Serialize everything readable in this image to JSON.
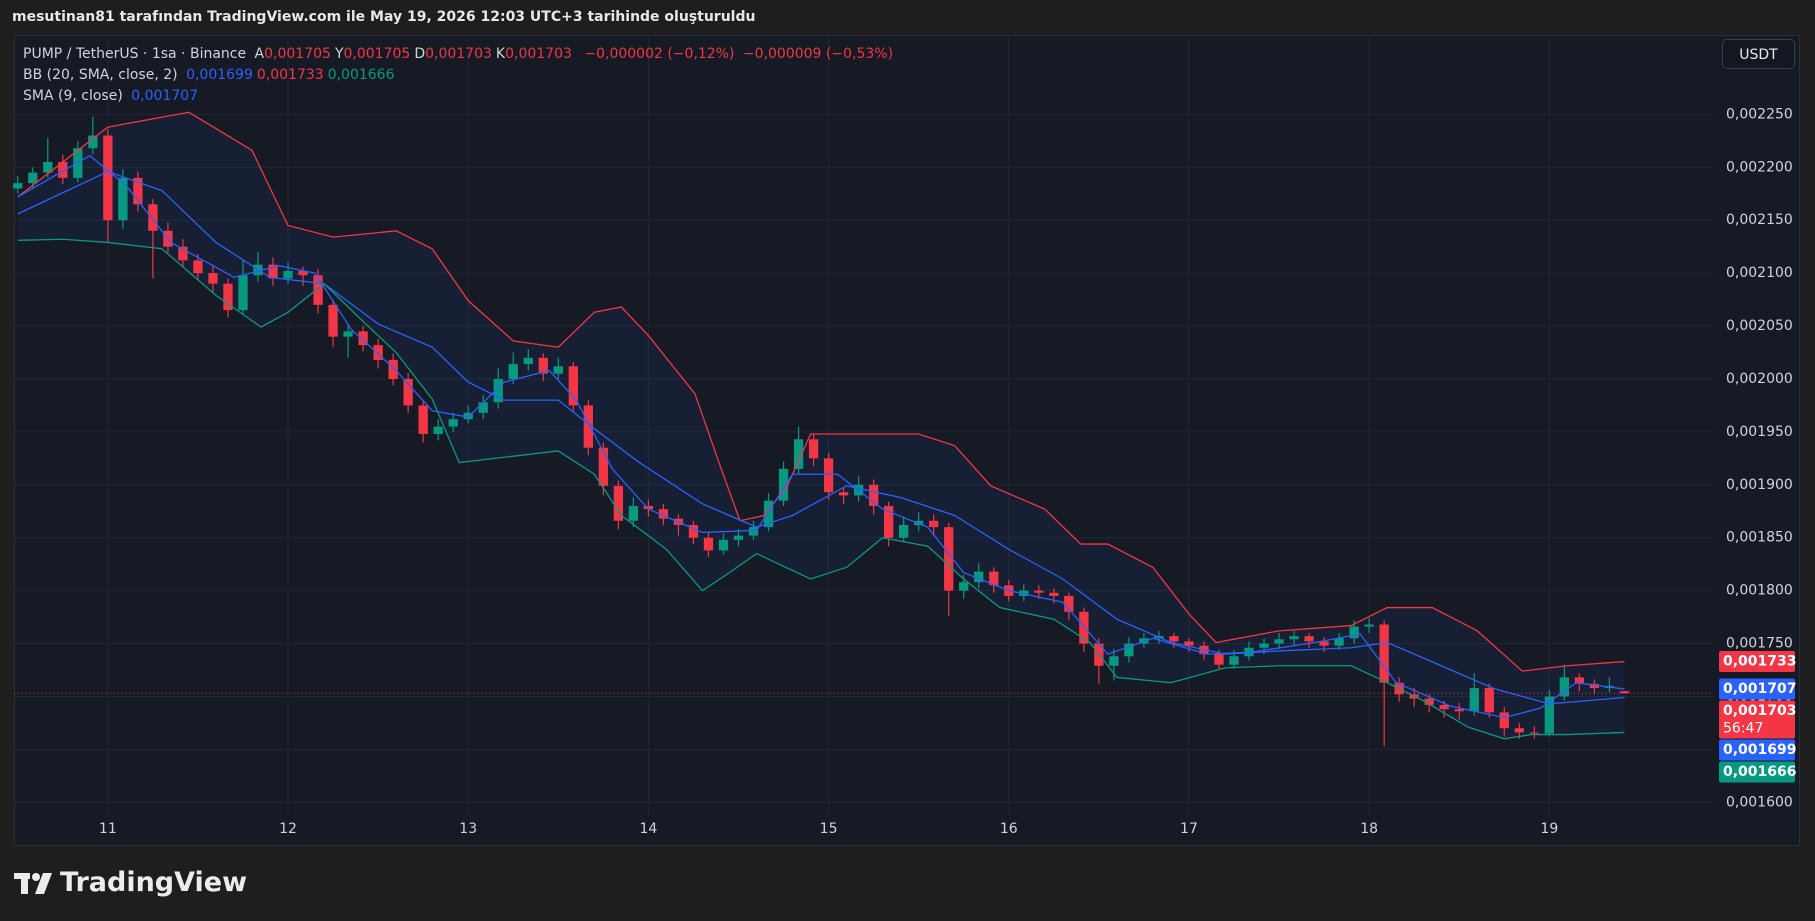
{
  "caption": "mesutinan81 tarafından TradingView.com ile May 19, 2026 12:03 UTC+3 tarihinde oluşturuldu",
  "currency": "USDT",
  "brand": "TradingView",
  "chart_data": {
    "type": "candlestick",
    "legend": {
      "symbol": "PUMP / TetherUS · 1sa · Binance",
      "ohlc": [
        {
          "key": "A",
          "value": "0,001705"
        },
        {
          "key": "Y",
          "value": "0,001705"
        },
        {
          "key": "D",
          "value": "0,001703"
        },
        {
          "key": "K",
          "value": "0,001703"
        }
      ],
      "change": [
        "−0,000002 (−0,12%)",
        "−0,000009 (−0,53%)"
      ],
      "bb": {
        "name": "BB (20, SMA, close, 2)",
        "values": [
          {
            "text": "0,001699",
            "color": "#2962ff"
          },
          {
            "text": "0,001733",
            "color": "#f23645"
          },
          {
            "text": "0,001666",
            "color": "#089981"
          }
        ]
      },
      "sma": {
        "name": "SMA (9, close)",
        "values": [
          {
            "text": "0,001707",
            "color": "#2962ff"
          }
        ]
      }
    },
    "up_color": "#089981",
    "down_color": "#f23645",
    "x": [
      12,
      14,
      16,
      18,
      20,
      22,
      24,
      26,
      28,
      30,
      32,
      34,
      36,
      38,
      40,
      42,
      44,
      46,
      48,
      50,
      52,
      54,
      56,
      58,
      60,
      62,
      64,
      66,
      68,
      70,
      72,
      74,
      76,
      78,
      80,
      82,
      84,
      86,
      88,
      90,
      92,
      94,
      96,
      98,
      100,
      102,
      104,
      106,
      108,
      110,
      112,
      114,
      116,
      118,
      120,
      122,
      124,
      126,
      128,
      130,
      132,
      134,
      136,
      138,
      140,
      142,
      144,
      146,
      148,
      150,
      152,
      154,
      156,
      158,
      160,
      162,
      164,
      166,
      168,
      170,
      172,
      174,
      176,
      178,
      180,
      182,
      184,
      186,
      188,
      190,
      192,
      194,
      196,
      198,
      200,
      202,
      204,
      206,
      208,
      210,
      212,
      214,
      216,
      218,
      220,
      222,
      224,
      226
    ],
    "open": [
      0.00218,
      0.002185,
      0.002195,
      0.002205,
      0.00219,
      0.002218,
      0.00223,
      0.00215,
      0.00219,
      0.002165,
      0.00214,
      0.002125,
      0.002112,
      0.0021,
      0.00209,
      0.002065,
      0.002098,
      0.002108,
      0.002095,
      0.002102,
      0.002098,
      0.00207,
      0.00204,
      0.002045,
      0.002032,
      0.002018,
      0.002,
      0.001975,
      0.001948,
      0.001955,
      0.001962,
      0.001968,
      0.001978,
      0.002,
      0.002014,
      0.00202,
      0.002005,
      0.002012,
      0.001975,
      0.001935,
      0.001899,
      0.001866,
      0.00188,
      0.001877,
      0.001868,
      0.001862,
      0.00185,
      0.001838,
      0.001848,
      0.001852,
      0.00186,
      0.001885,
      0.001915,
      0.001943,
      0.001925,
      0.001893,
      0.00189,
      0.0019,
      0.00188,
      0.00185,
      0.001862,
      0.001866,
      0.00186,
      0.0018,
      0.001808,
      0.001818,
      0.001805,
      0.001795,
      0.0018,
      0.001798,
      0.001795,
      0.00178,
      0.00175,
      0.001729,
      0.001738,
      0.00175,
      0.001755,
      0.001757,
      0.001752,
      0.001748,
      0.00174,
      0.00173,
      0.001738,
      0.001746,
      0.00175,
      0.001754,
      0.001757,
      0.001752,
      0.001748,
      0.001755,
      0.001766,
      0.001768,
      0.001713,
      0.001702,
      0.001698,
      0.001692,
      0.001688,
      0.001686,
      0.001708,
      0.001685,
      0.00167,
      0.001666,
      0.001665,
      0.0017,
      0.001718,
      0.001712,
      0.001708,
      0.001705
    ],
    "high": [
      0.002192,
      0.0022,
      0.002228,
      0.002212,
      0.002225,
      0.002248,
      0.002236,
      0.002198,
      0.002196,
      0.00217,
      0.002148,
      0.002132,
      0.002118,
      0.002108,
      0.002095,
      0.002112,
      0.00212,
      0.002115,
      0.00211,
      0.002106,
      0.002104,
      0.002075,
      0.002052,
      0.00205,
      0.002038,
      0.002024,
      0.002006,
      0.00198,
      0.001962,
      0.001968,
      0.001975,
      0.001985,
      0.00201,
      0.002025,
      0.002028,
      0.002024,
      0.00202,
      0.002016,
      0.00198,
      0.00194,
      0.001904,
      0.001888,
      0.001886,
      0.001882,
      0.001872,
      0.001866,
      0.001855,
      0.001854,
      0.001858,
      0.001866,
      0.001892,
      0.001922,
      0.001955,
      0.001948,
      0.00193,
      0.001898,
      0.001908,
      0.001905,
      0.001884,
      0.00187,
      0.001874,
      0.001872,
      0.001864,
      0.001815,
      0.001826,
      0.001822,
      0.00181,
      0.001806,
      0.001805,
      0.001802,
      0.001798,
      0.001784,
      0.001755,
      0.001745,
      0.001756,
      0.00176,
      0.001762,
      0.00176,
      0.001755,
      0.001752,
      0.001744,
      0.001744,
      0.001752,
      0.001755,
      0.00176,
      0.001762,
      0.00176,
      0.001756,
      0.00176,
      0.001772,
      0.001774,
      0.001772,
      0.001718,
      0.001708,
      0.001702,
      0.001696,
      0.001694,
      0.001722,
      0.001712,
      0.00169,
      0.001675,
      0.001672,
      0.001706,
      0.00173,
      0.001722,
      0.001716,
      0.001718,
      0.001705
    ],
    "low": [
      0.002175,
      0.00218,
      0.00219,
      0.002184,
      0.002186,
      0.002212,
      0.00213,
      0.002142,
      0.002158,
      0.002095,
      0.002118,
      0.002105,
      0.002094,
      0.002082,
      0.002058,
      0.00206,
      0.002092,
      0.002088,
      0.00209,
      0.002088,
      0.002062,
      0.00203,
      0.00202,
      0.002026,
      0.00201,
      0.001994,
      0.001968,
      0.00194,
      0.001942,
      0.00195,
      0.001958,
      0.001962,
      0.001972,
      0.001995,
      0.002008,
      0.001998,
      0.002,
      0.001968,
      0.001928,
      0.00189,
      0.001858,
      0.00186,
      0.00187,
      0.001862,
      0.001852,
      0.001844,
      0.001832,
      0.001834,
      0.001842,
      0.001848,
      0.001856,
      0.00188,
      0.00191,
      0.001918,
      0.001886,
      0.001882,
      0.001884,
      0.001872,
      0.001842,
      0.001846,
      0.001856,
      0.001852,
      0.001776,
      0.001792,
      0.001802,
      0.001798,
      0.00179,
      0.00179,
      0.001792,
      0.001788,
      0.001772,
      0.001742,
      0.001712,
      0.001715,
      0.001732,
      0.001746,
      0.00175,
      0.001746,
      0.001742,
      0.001735,
      0.001725,
      0.001726,
      0.001734,
      0.00174,
      0.001745,
      0.001748,
      0.001746,
      0.001742,
      0.001744,
      0.00175,
      0.00176,
      0.001653,
      0.001695,
      0.00169,
      0.001685,
      0.00168,
      0.001678,
      0.001682,
      0.00168,
      0.001662,
      0.00166,
      0.00166,
      0.001662,
      0.001696,
      0.001705,
      0.001702,
      0.001704,
      0.001703
    ],
    "close": [
      0.002185,
      0.002195,
      0.002205,
      0.00219,
      0.002218,
      0.00223,
      0.00215,
      0.00219,
      0.002165,
      0.00214,
      0.002125,
      0.002112,
      0.0021,
      0.00209,
      0.002065,
      0.002098,
      0.002108,
      0.002095,
      0.002102,
      0.002098,
      0.00207,
      0.00204,
      0.002045,
      0.002032,
      0.002018,
      0.002,
      0.001975,
      0.001948,
      0.001955,
      0.001962,
      0.001968,
      0.001978,
      0.002,
      0.002014,
      0.00202,
      0.002005,
      0.002012,
      0.001975,
      0.001935,
      0.001899,
      0.001866,
      0.00188,
      0.001877,
      0.001868,
      0.001862,
      0.00185,
      0.001838,
      0.001848,
      0.001852,
      0.00186,
      0.001885,
      0.001915,
      0.001943,
      0.001925,
      0.001893,
      0.00189,
      0.0019,
      0.00188,
      0.00185,
      0.001862,
      0.001866,
      0.00186,
      0.0018,
      0.001808,
      0.001818,
      0.001805,
      0.001795,
      0.0018,
      0.001798,
      0.001795,
      0.00178,
      0.00175,
      0.001729,
      0.001738,
      0.00175,
      0.001755,
      0.001757,
      0.001752,
      0.001748,
      0.00174,
      0.00173,
      0.001738,
      0.001746,
      0.00175,
      0.001754,
      0.001757,
      0.001752,
      0.001748,
      0.001755,
      0.001766,
      0.001768,
      0.001713,
      0.001702,
      0.001698,
      0.001692,
      0.001688,
      0.001686,
      0.001708,
      0.001685,
      0.00167,
      0.001666,
      0.001665,
      0.0017,
      0.001718,
      0.001712,
      0.001708,
      0.00171,
      0.001703
    ],
    "band_fill": "rgba(41,98,255,0.07)",
    "lines": [
      {
        "color": "#f23645",
        "x": [
          12,
          24,
          34.8,
          43.2,
          48,
          54,
          62.4,
          67.2,
          72,
          78,
          84,
          88.8,
          92.4,
          96,
          102.2,
          105.4,
          108.2,
          111.4,
          114.5,
          117.6,
          124.8,
          132,
          136.8,
          141.6,
          148.8,
          153.6,
          157.2,
          163.2,
          168,
          171.6,
          180,
          189.6,
          194.4,
          200.4,
          206.4,
          212.4,
          218.4,
          226
        ],
        "values": [
          0.002172,
          0.002238,
          0.002252,
          0.002216,
          0.002145,
          0.002134,
          0.00214,
          0.002123,
          0.002074,
          0.002036,
          0.00203,
          0.002063,
          0.002068,
          0.002041,
          0.001986,
          0.001921,
          0.001866,
          0.001871,
          0.001899,
          0.001948,
          0.001948,
          0.001948,
          0.001937,
          0.001899,
          0.001877,
          0.001844,
          0.001844,
          0.001822,
          0.001778,
          0.001751,
          0.001762,
          0.001767,
          0.001784,
          0.001784,
          0.001762,
          0.001724,
          0.001729,
          0.001733
        ]
      },
      {
        "color": "#2962ff",
        "x": [
          12,
          24,
          31.2,
          38.4,
          45.6,
          52.8,
          60,
          67.2,
          72,
          76.8,
          84,
          88.8,
          94.8,
          103.2,
          110.4,
          115.2,
          122.4,
          129.6,
          136.8,
          144,
          151.2,
          158.4,
          165.6,
          172.8,
          180,
          189.6,
          194.4,
          201.6,
          208.8,
          216,
          226
        ],
        "values": [
          0.002156,
          0.002196,
          0.002178,
          0.002129,
          0.002096,
          0.00209,
          0.002052,
          0.00203,
          0.001997,
          0.00198,
          0.00198,
          0.001953,
          0.001921,
          0.001882,
          0.00186,
          0.001871,
          0.001899,
          0.001888,
          0.001871,
          0.001839,
          0.001811,
          0.001773,
          0.001751,
          0.00174,
          0.001743,
          0.001746,
          0.001751,
          0.001729,
          0.001707,
          0.001693,
          0.001699
        ]
      },
      {
        "color": "#089981",
        "x": [
          12,
          18,
          24,
          31.2,
          38.4,
          44.4,
          48,
          52.8,
          57.6,
          62.4,
          67.2,
          70.8,
          76.8,
          84,
          88.8,
          92.4,
          98.4,
          103.2,
          106.8,
          110.4,
          117.6,
          122.4,
          127.2,
          133.2,
          138,
          142.8,
          150,
          154.8,
          158.4,
          165.6,
          172.8,
          180,
          189.6,
          194.4,
          199.2,
          205.2,
          210,
          213.6,
          218.4,
          226
        ],
        "values": [
          0.002131,
          0.002132,
          0.002129,
          0.002123,
          0.002079,
          0.002049,
          0.002063,
          0.00209,
          0.002057,
          0.002025,
          0.001981,
          0.001921,
          0.001926,
          0.001932,
          0.00191,
          0.001871,
          0.001839,
          0.0018,
          0.001817,
          0.001835,
          0.001811,
          0.001822,
          0.00185,
          0.001842,
          0.001811,
          0.001784,
          0.001773,
          0.001751,
          0.001718,
          0.001713,
          0.001727,
          0.001729,
          0.001729,
          0.001713,
          0.001696,
          0.001671,
          0.00166,
          0.001664,
          0.001664,
          0.001666
        ]
      },
      {
        "color": "#2962ff",
        "x": [
          12,
          21.6,
          26.4,
          32.4,
          40.8,
          46.8,
          51.6,
          56.4,
          62.4,
          67.2,
          72,
          76.8,
          82.8,
          86.4,
          91.2,
          96,
          103.2,
          110.4,
          115.2,
          121.2,
          127.2,
          133.2,
          138,
          144,
          151.2,
          157.2,
          163.2,
          170.4,
          176.4,
          184.8,
          190.8,
          195.6,
          202.8,
          210,
          214.8,
          219.6,
          226
        ],
        "values": [
          0.002172,
          0.002211,
          0.002183,
          0.002129,
          0.002096,
          0.002107,
          0.0021,
          0.002047,
          0.002008,
          0.00197,
          0.001964,
          0.001997,
          0.002008,
          0.00198,
          0.001915,
          0.001877,
          0.001855,
          0.001857,
          0.00191,
          0.00191,
          0.001877,
          0.00186,
          0.001817,
          0.0018,
          0.001789,
          0.00174,
          0.001755,
          0.00174,
          0.001742,
          0.001751,
          0.001759,
          0.001713,
          0.001691,
          0.00168,
          0.001689,
          0.001713,
          0.001707
        ]
      }
    ],
    "price_labels": [
      {
        "value": 0.001733,
        "label": "0,001733",
        "color": "#f23645"
      },
      {
        "value": 0.001707,
        "label": "0,001707",
        "color": "#2962ff"
      },
      {
        "value": 0.001703,
        "label": "0,001703",
        "color": "#f23645",
        "countdown": "56:47"
      },
      {
        "value": 0.001699,
        "label": "0,001699",
        "color": "#2962ff"
      },
      {
        "value": 0.001666,
        "label": "0,001666",
        "color": "#089981"
      }
    ],
    "xlim": [
      11.5,
      237.8
    ],
    "xticks": [
      {
        "value": 24,
        "label": "11"
      },
      {
        "value": 48,
        "label": "12"
      },
      {
        "value": 72,
        "label": "13"
      },
      {
        "value": 96,
        "label": "14"
      },
      {
        "value": 120,
        "label": "15"
      },
      {
        "value": 144,
        "label": "16"
      },
      {
        "value": 168,
        "label": "17"
      },
      {
        "value": 192,
        "label": "18"
      },
      {
        "value": 216,
        "label": "19"
      }
    ],
    "ylim": [
      0.001588,
      0.002325
    ],
    "yticks": [
      {
        "value": 0.0016,
        "label": "0,001600"
      },
      {
        "value": 0.00165,
        "label": "0,001650"
      },
      {
        "value": 0.0017,
        "label": "0,001700"
      },
      {
        "value": 0.00175,
        "label": "0,001750"
      },
      {
        "value": 0.0018,
        "label": "0,001800"
      },
      {
        "value": 0.00185,
        "label": "0,001850"
      },
      {
        "value": 0.0019,
        "label": "0,001900"
      },
      {
        "value": 0.00195,
        "label": "0,001950"
      },
      {
        "value": 0.002,
        "label": "0,002000"
      },
      {
        "value": 0.00205,
        "label": "0,002050"
      },
      {
        "value": 0.0021,
        "label": "0,002100"
      },
      {
        "value": 0.00215,
        "label": "0,002150"
      },
      {
        "value": 0.0022,
        "label": "0,002200"
      },
      {
        "value": 0.00225,
        "label": "0,002250"
      }
    ],
    "grid": true
  }
}
